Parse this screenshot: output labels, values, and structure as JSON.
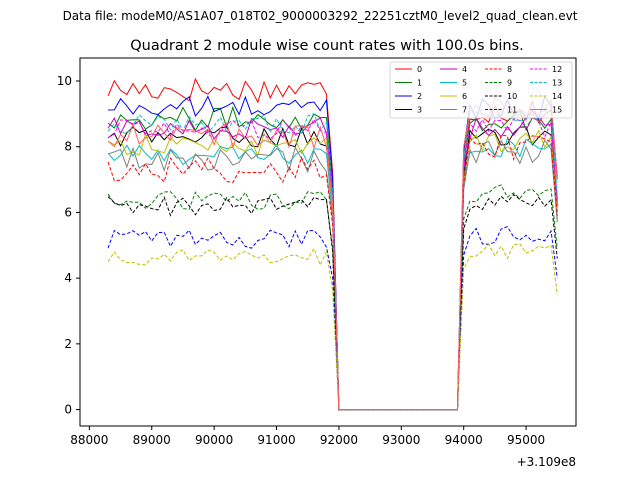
{
  "figure": {
    "suptitle": "Data file: modeM0/AS1A07_018T02_9000003292_22251cztM0_level2_quad_clean.evt"
  },
  "chart_data": {
    "type": "line",
    "title": "Quadrant 2 module wise count rates with 100.0s bins.",
    "xlabel": "",
    "ylabel": "",
    "x_offset_label": "+3.109e8",
    "xlim": [
      87850,
      95800
    ],
    "ylim": [
      -0.5,
      10.7
    ],
    "x_ticks": [
      88000,
      89000,
      90000,
      91000,
      92000,
      93000,
      94000,
      95000
    ],
    "y_ticks": [
      0,
      2,
      4,
      6,
      8,
      10
    ],
    "x_tick_labels": [
      "88000",
      "89000",
      "90000",
      "91000",
      "92000",
      "93000",
      "94000",
      "95000"
    ],
    "y_tick_labels": [
      "0",
      "2",
      "4",
      "6",
      "8",
      "10"
    ],
    "grid": false,
    "legend_placement": "top-right",
    "bin_width": 100,
    "segment1": {
      "start": 88300,
      "end": 91800,
      "drop_point": 91900
    },
    "gap": {
      "start": 92000,
      "end": 93900,
      "value": 0
    },
    "segment2": {
      "rise_point": 94000,
      "start": 94100,
      "end": 95400,
      "tail_point": 95500
    },
    "series": [
      {
        "name": "0",
        "color": "#ff0000",
        "dash": "solid",
        "level1": 9.75,
        "level2": 9.1,
        "noise": 0.25,
        "drop": 7.2,
        "rise": 7.8,
        "tail": 7.1
      },
      {
        "name": "1",
        "color": "#008000",
        "dash": "solid",
        "level1": 8.85,
        "level2": 8.8,
        "noise": 0.22,
        "drop": 6.7,
        "rise": 7.5,
        "tail": 6.2
      },
      {
        "name": "2",
        "color": "#0000ff",
        "dash": "solid",
        "level1": 9.2,
        "level2": 9.2,
        "noise": 0.22,
        "drop": 7.0,
        "rise": 7.9,
        "tail": 7.0
      },
      {
        "name": "3",
        "color": "#000000",
        "dash": "solid",
        "level1": 8.3,
        "level2": 8.3,
        "noise": 0.2,
        "drop": 6.3,
        "rise": 7.1,
        "tail": 6.0
      },
      {
        "name": "4",
        "color": "#bf00bf",
        "dash": "solid",
        "level1": 8.55,
        "level2": 8.6,
        "noise": 0.22,
        "drop": 6.5,
        "rise": 7.4,
        "tail": 6.4
      },
      {
        "name": "5",
        "color": "#00bfbf",
        "dash": "solid",
        "level1": 7.75,
        "level2": 8.0,
        "noise": 0.2,
        "drop": 5.9,
        "rise": 6.9,
        "tail": 5.8
      },
      {
        "name": "6",
        "color": "#bfbf00",
        "dash": "solid",
        "level1": 8.05,
        "level2": 8.2,
        "noise": 0.22,
        "drop": 6.1,
        "rise": 7.0,
        "tail": 6.0
      },
      {
        "name": "7",
        "color": "#808080",
        "dash": "solid",
        "level1": 7.6,
        "level2": 7.8,
        "noise": 0.25,
        "drop": 5.8,
        "rise": 6.7,
        "tail": 5.7
      },
      {
        "name": "8",
        "color": "#ff0000",
        "dash": "dashed",
        "level1": 7.3,
        "level2": 8.0,
        "noise": 0.25,
        "drop": 5.6,
        "rise": 6.9,
        "tail": 5.9
      },
      {
        "name": "9",
        "color": "#008000",
        "dash": "dashed",
        "level1": 6.35,
        "level2": 6.6,
        "noise": 0.18,
        "drop": 4.9,
        "rise": 5.8,
        "tail": 4.9
      },
      {
        "name": "10",
        "color": "#000000",
        "dash": "dashed",
        "level1": 6.2,
        "level2": 6.25,
        "noise": 0.2,
        "drop": 4.8,
        "rise": 5.5,
        "tail": 4.6
      },
      {
        "name": "11",
        "color": "#0000ff",
        "dash": "dashed",
        "level1": 5.2,
        "level2": 5.3,
        "noise": 0.18,
        "drop": 4.0,
        "rise": 4.7,
        "tail": 4.0
      },
      {
        "name": "12",
        "color": "#ff00ff",
        "dash": "dashed",
        "level1": 8.55,
        "level2": 8.6,
        "noise": 0.2,
        "drop": 6.5,
        "rise": 7.4,
        "tail": 6.3
      },
      {
        "name": "13",
        "color": "#00bfbf",
        "dash": "dashed",
        "level1": 8.7,
        "level2": 8.9,
        "noise": 0.2,
        "drop": 6.6,
        "rise": 7.6,
        "tail": 6.5
      },
      {
        "name": "14",
        "color": "#bfbf00",
        "dash": "dashed",
        "level1": 4.65,
        "level2": 4.85,
        "noise": 0.16,
        "drop": 3.6,
        "rise": 4.3,
        "tail": 3.5
      },
      {
        "name": "15",
        "color": "#ff6060",
        "dash": "solid",
        "level1": 8.35,
        "level2": 9.2,
        "noise": 0.25,
        "drop": 6.3,
        "rise": 8.0,
        "tail": 7.0
      }
    ]
  }
}
